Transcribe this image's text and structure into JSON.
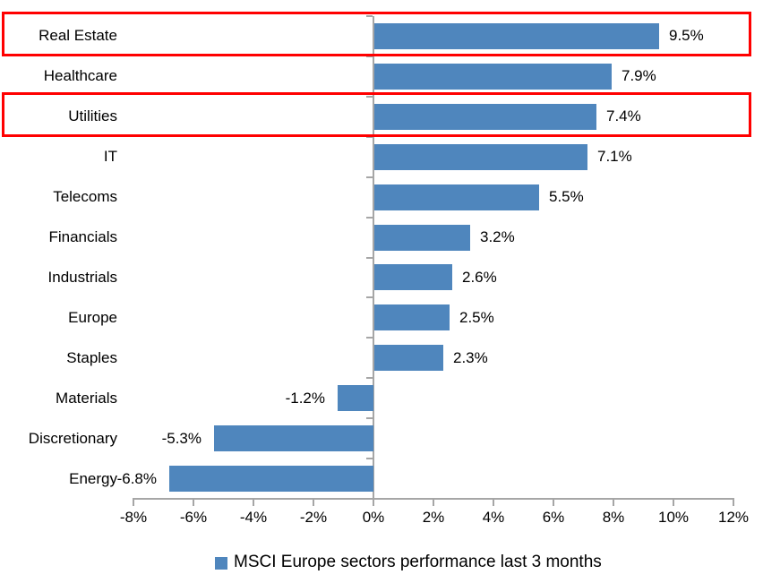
{
  "chart_data": {
    "type": "bar",
    "orientation": "horizontal",
    "title": "",
    "categories": [
      "Real Estate",
      "Healthcare",
      "Utilities",
      "IT",
      "Telecoms",
      "Financials",
      "Industrials",
      "Europe",
      "Staples",
      "Materials",
      "Discretionary",
      "Energy"
    ],
    "values": [
      9.5,
      7.9,
      7.4,
      7.1,
      5.5,
      3.2,
      2.6,
      2.5,
      2.3,
      -1.2,
      -5.3,
      -6.8
    ],
    "value_labels": [
      "9.5%",
      "7.9%",
      "7.4%",
      "7.1%",
      "5.5%",
      "3.2%",
      "2.6%",
      "2.5%",
      "2.3%",
      "-1.2%",
      "-5.3%",
      "-6.8%"
    ],
    "xlim": [
      -8,
      12
    ],
    "x_ticks": [
      -8,
      -6,
      -4,
      -2,
      0,
      2,
      4,
      6,
      8,
      10,
      12
    ],
    "x_tick_labels": [
      "-8%",
      "-6%",
      "-4%",
      "-2%",
      "0%",
      "2%",
      "4%",
      "6%",
      "8%",
      "10%",
      "12%"
    ],
    "grid": false,
    "legend": "MSCI Europe sectors performance last 3 months",
    "legend_position": "bottom",
    "bar_color": "#4f86bd",
    "axis_color": "#a6a6a6",
    "text_color": "#000000",
    "highlight_color": "#ff0000",
    "highlighted_categories": [
      "Real Estate",
      "Utilities"
    ]
  }
}
